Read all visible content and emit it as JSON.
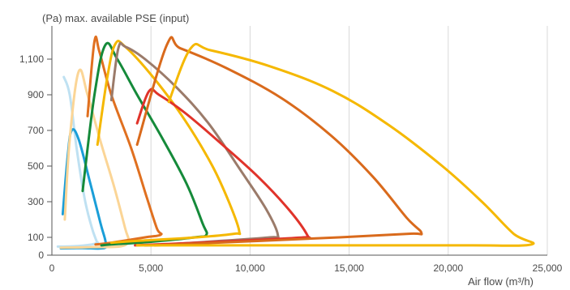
{
  "chart_data": {
    "type": "line",
    "title": "(Pa) max. available PSE (input)",
    "xlabel": "Air flow (m³/h)",
    "ylabel": "",
    "xlim": [
      0,
      25000
    ],
    "ylim": [
      0,
      1250
    ],
    "x_ticks": [
      0,
      5000,
      10000,
      15000,
      20000,
      25000
    ],
    "x_tick_labels": [
      "0",
      "5,000",
      "10,000",
      "15,000",
      "20,000",
      "25,000"
    ],
    "y_ticks": [
      0,
      100,
      300,
      500,
      700,
      900,
      1100
    ],
    "y_tick_labels": [
      "0",
      "100",
      "300",
      "500",
      "700",
      "900",
      "1,100"
    ],
    "grid": "vertical",
    "legend": "none",
    "series": [
      {
        "color": "#bfe1f2",
        "points": [
          [
            600,
            1000
          ],
          [
            900,
            900
          ],
          [
            1250,
            600
          ],
          [
            1650,
            320
          ],
          [
            2000,
            160
          ],
          [
            2250,
            80
          ],
          [
            2300,
            70
          ],
          [
            2000,
            60
          ],
          [
            1100,
            50
          ],
          [
            300,
            48
          ]
        ]
      },
      {
        "color": "#1a9ed8",
        "points": [
          [
            550,
            230
          ],
          [
            800,
            560
          ],
          [
            1000,
            700
          ],
          [
            1350,
            650
          ],
          [
            1900,
            420
          ],
          [
            2450,
            180
          ],
          [
            2700,
            80
          ],
          [
            2650,
            40
          ],
          [
            1500,
            40
          ],
          [
            450,
            38
          ]
        ]
      },
      {
        "color": "#fbd596",
        "points": [
          [
            650,
            200
          ],
          [
            900,
            650
          ],
          [
            1350,
            1030
          ],
          [
            1800,
            900
          ],
          [
            2450,
            640
          ],
          [
            3150,
            380
          ],
          [
            3700,
            150
          ],
          [
            3850,
            85
          ],
          [
            3500,
            50
          ],
          [
            2000,
            45
          ],
          [
            450,
            42
          ]
        ]
      },
      {
        "color": "#e07020",
        "points": [
          [
            1800,
            780
          ],
          [
            2150,
            1200
          ],
          [
            2400,
            1140
          ],
          [
            3000,
            900
          ],
          [
            4000,
            600
          ],
          [
            4800,
            320
          ],
          [
            5300,
            150
          ],
          [
            5500,
            115
          ],
          [
            4700,
            100
          ],
          [
            3000,
            70
          ],
          [
            2200,
            60
          ]
        ]
      },
      {
        "color": "#158a3a",
        "points": [
          [
            1550,
            360
          ],
          [
            2150,
            900
          ],
          [
            2700,
            1180
          ],
          [
            3300,
            1100
          ],
          [
            4300,
            900
          ],
          [
            5600,
            650
          ],
          [
            6800,
            400
          ],
          [
            7600,
            180
          ],
          [
            7800,
            115
          ],
          [
            7200,
            100
          ],
          [
            5000,
            75
          ],
          [
            3000,
            60
          ],
          [
            2500,
            55
          ]
        ]
      },
      {
        "color": "#f5b800",
        "points": [
          [
            2300,
            620
          ],
          [
            2800,
            1000
          ],
          [
            3200,
            1185
          ],
          [
            3700,
            1170
          ],
          [
            5100,
            1000
          ],
          [
            6700,
            760
          ],
          [
            8100,
            500
          ],
          [
            9000,
            280
          ],
          [
            9450,
            135
          ],
          [
            9200,
            120
          ],
          [
            7300,
            100
          ],
          [
            4300,
            80
          ],
          [
            3000,
            70
          ]
        ]
      },
      {
        "color": "#9b7b6a",
        "points": [
          [
            3000,
            870
          ],
          [
            3350,
            1160
          ],
          [
            3700,
            1170
          ],
          [
            4700,
            1100
          ],
          [
            6300,
            940
          ],
          [
            7900,
            740
          ],
          [
            9500,
            480
          ],
          [
            10800,
            260
          ],
          [
            11400,
            115
          ],
          [
            11000,
            100
          ],
          [
            8500,
            80
          ],
          [
            5800,
            60
          ],
          [
            4700,
            55
          ]
        ]
      },
      {
        "color": "#e0332a",
        "points": [
          [
            4300,
            740
          ],
          [
            4900,
            920
          ],
          [
            5400,
            900
          ],
          [
            6700,
            800
          ],
          [
            8500,
            630
          ],
          [
            10400,
            440
          ],
          [
            12000,
            250
          ],
          [
            12900,
            110
          ],
          [
            12700,
            100
          ],
          [
            10200,
            85
          ],
          [
            7400,
            70
          ],
          [
            5300,
            60
          ],
          [
            4200,
            55
          ]
        ]
      },
      {
        "color": "#d96a1c",
        "points": [
          [
            4300,
            620
          ],
          [
            5800,
            1180
          ],
          [
            6500,
            1160
          ],
          [
            8800,
            1050
          ],
          [
            11600,
            880
          ],
          [
            14100,
            670
          ],
          [
            16200,
            440
          ],
          [
            17900,
            210
          ],
          [
            18650,
            125
          ],
          [
            18000,
            120
          ],
          [
            14500,
            100
          ],
          [
            10500,
            80
          ],
          [
            7200,
            65
          ],
          [
            5200,
            55
          ]
        ]
      },
      {
        "color": "#f5b800",
        "points": [
          [
            5900,
            860
          ],
          [
            7000,
            1160
          ],
          [
            8000,
            1150
          ],
          [
            11000,
            1060
          ],
          [
            14200,
            920
          ],
          [
            17000,
            730
          ],
          [
            19700,
            500
          ],
          [
            21700,
            300
          ],
          [
            23300,
            120
          ],
          [
            24200,
            60
          ],
          [
            21000,
            55
          ],
          [
            15000,
            55
          ],
          [
            9000,
            55
          ],
          [
            5500,
            55
          ],
          [
            4300,
            55
          ]
        ]
      }
    ]
  }
}
